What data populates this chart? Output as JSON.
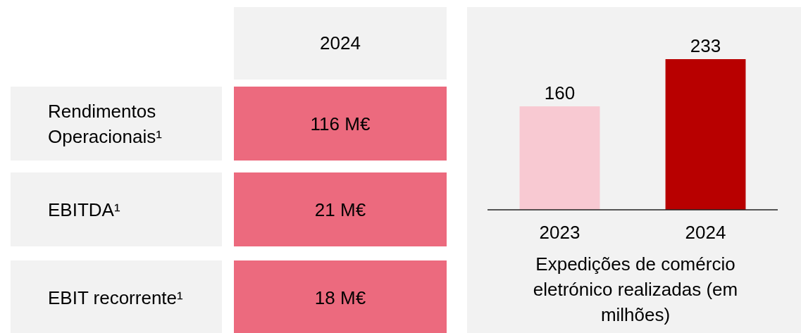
{
  "chart_data": [
    {
      "type": "other",
      "title": "2024",
      "categories": [
        "Rendimentos Operacionais¹",
        "EBITDA¹",
        "EBIT recorrente¹"
      ],
      "value_labels": [
        "116 M€",
        "21 M€",
        "18 M€"
      ],
      "color": "#ec6a7e"
    },
    {
      "type": "bar",
      "categories": [
        "2023",
        "2024"
      ],
      "values": [
        160,
        233
      ],
      "colors": [
        "#f8c9d2",
        "#b80000"
      ],
      "data_labels": true,
      "xlabel": "Expedições de comércio eletrónico realizadas (em milhões)"
    }
  ]
}
